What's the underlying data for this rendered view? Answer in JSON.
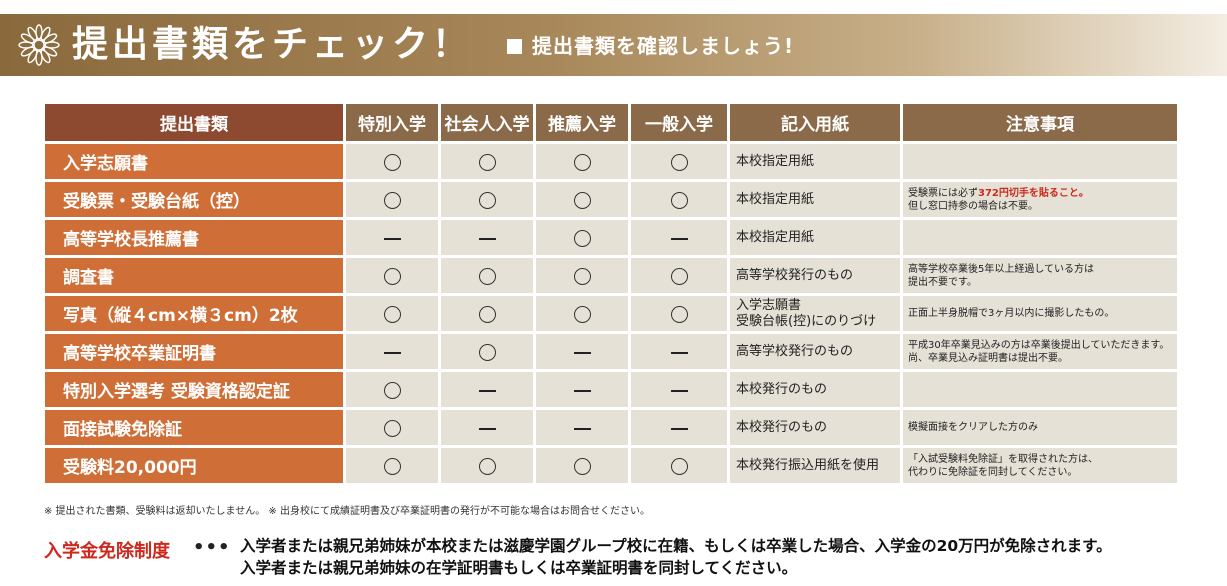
{
  "banner": {
    "title": "提出書類をチェック！",
    "subtitle": "提出書類を確認しましょう!"
  },
  "table": {
    "headers": [
      "提出書類",
      "特別入学",
      "社会人入学",
      "推薦入学",
      "一般入学",
      "記入用紙",
      "注意事項"
    ],
    "rows": [
      {
        "name": "入学志願書",
        "marks": [
          "circle",
          "circle",
          "circle",
          "circle"
        ],
        "form": "本校指定用紙",
        "note": ""
      },
      {
        "name": "受験票・受験台紙（控）",
        "marks": [
          "circle",
          "circle",
          "circle",
          "circle"
        ],
        "form": "本校指定用紙",
        "note_a": "受験票には必ず",
        "note_red": "372円切手を貼ること。",
        "note_b": "但し窓口持参の場合は不要。"
      },
      {
        "name": "高等学校長推薦書",
        "marks": [
          "dash",
          "dash",
          "circle",
          "dash"
        ],
        "form": "本校指定用紙",
        "note": ""
      },
      {
        "name": "調査書",
        "marks": [
          "circle",
          "circle",
          "circle",
          "circle"
        ],
        "form": "高等学校発行のもの",
        "note_a": "高等学校卒業後5年以上経過している方は",
        "note_b": "提出不要です。"
      },
      {
        "name": "写真（縦４cm×横３cm）2枚",
        "marks": [
          "circle",
          "circle",
          "circle",
          "circle"
        ],
        "form_a": "入学志願書",
        "form_b": "受験台帳(控)にのりづけ",
        "note": "正面上半身脱帽で3ヶ月以内に撮影したもの。"
      },
      {
        "name": "高等学校卒業証明書",
        "marks": [
          "dash",
          "circle",
          "dash",
          "dash"
        ],
        "form": "高等学校発行のもの",
        "note_a": "平成30年卒業見込みの方は卒業後提出していただきます。",
        "note_b": "尚、卒業見込み証明書は提出不要。"
      },
      {
        "name": "特別入学選考 受験資格認定証",
        "marks": [
          "circle",
          "dash",
          "dash",
          "dash"
        ],
        "form": "本校発行のもの",
        "note": ""
      },
      {
        "name": "面接試験免除証",
        "marks": [
          "circle",
          "dash",
          "dash",
          "dash"
        ],
        "form": "本校発行のもの",
        "note": "模擬面接をクリアした方のみ"
      },
      {
        "name": "受験料20,000円",
        "marks": [
          "circle",
          "circle",
          "circle",
          "circle"
        ],
        "form": "本校発行振込用紙を使用",
        "note_a": "「入試受験料免除証」を取得された方は、",
        "note_b": "代わりに免除証を同封してください。"
      }
    ]
  },
  "footnote": "※ 提出された書類、受験料は返却いたしません。 ※ 出身校にて成績証明書及び卒業証明書の発行が不可能な場合はお問合せください。",
  "exemption": {
    "label": "入学金免除制度",
    "dots": "•••",
    "line1": "入学者または親兄弟姉妹が本校または滋慶学園グループ校に在籍、もしくは卒業した場合、入学金の20万円が免除されます。",
    "line2": "入学者または親兄弟姉妹の在学証明書もしくは卒業証明書を同封してください。"
  },
  "colors": {
    "banner": "#8a6a3c",
    "name_cell": "#cf6f37",
    "header": "#8b6a4a",
    "accent_red": "#cc2a1e"
  }
}
